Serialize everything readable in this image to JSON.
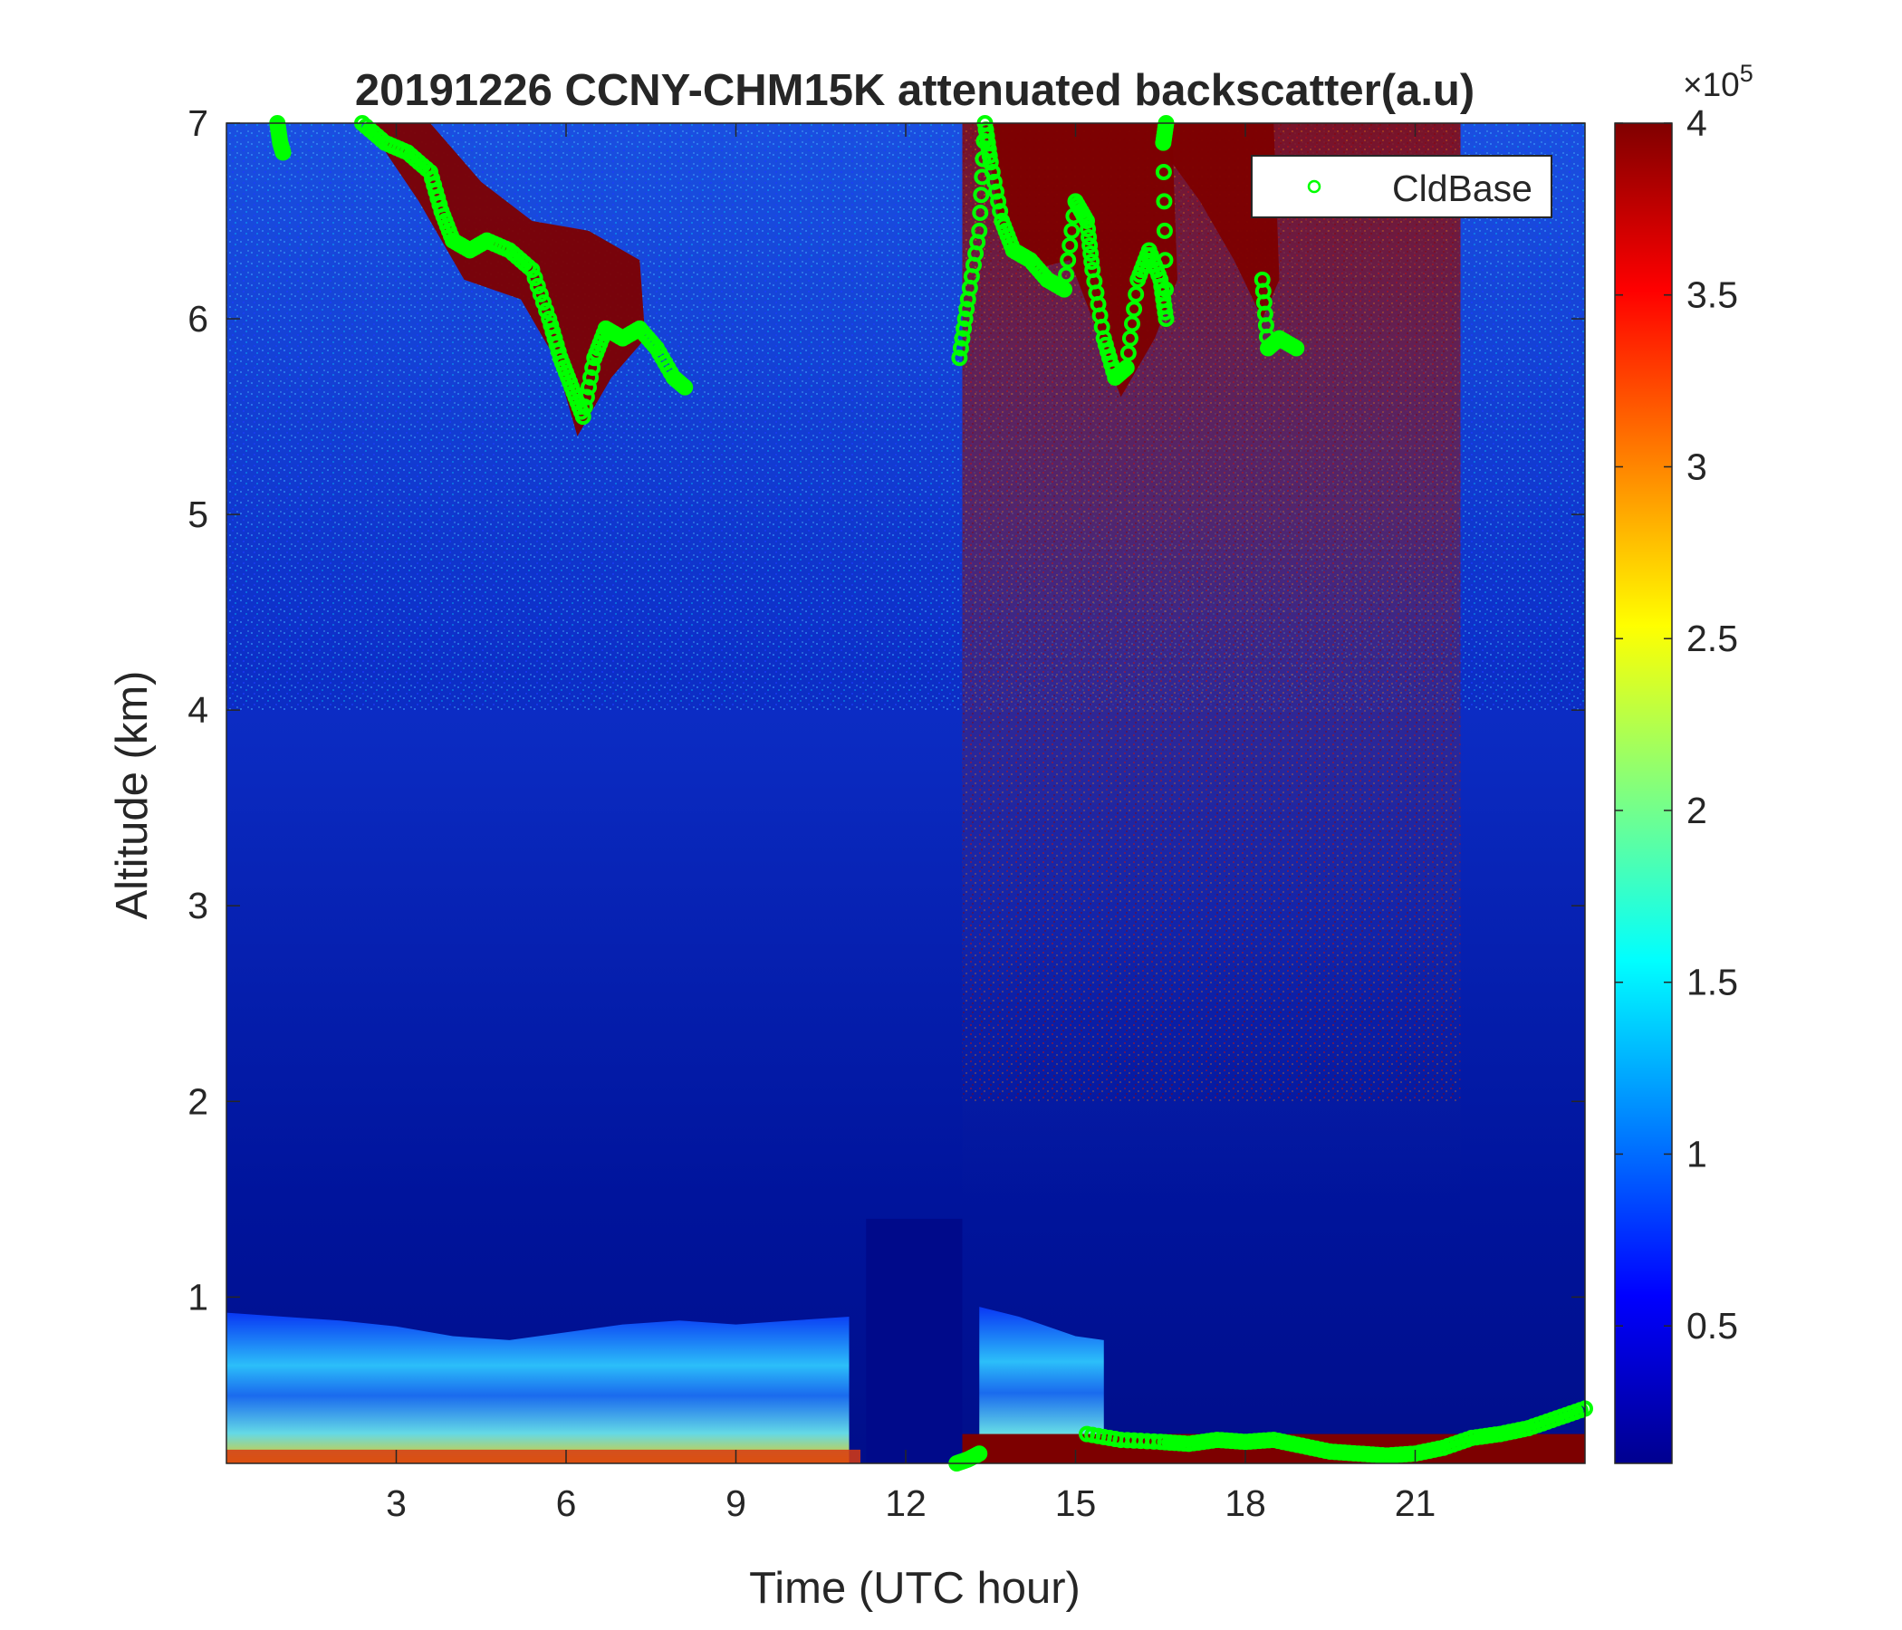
{
  "chart_data": {
    "type": "heatmap",
    "title": "20191226 CCNY-CHM15K attenuated backscatter(a.u)",
    "xlabel": "Time (UTC hour)",
    "ylabel": "Altitude (km)",
    "xlim": [
      0,
      24
    ],
    "ylim": [
      0.15,
      7
    ],
    "xticks": [
      3,
      6,
      9,
      12,
      15,
      18,
      21
    ],
    "yticks": [
      1,
      2,
      3,
      4,
      5,
      6,
      7
    ],
    "colorbar": {
      "colormap": "jet",
      "range": [
        0.1,
        4
      ],
      "ticks": [
        0.5,
        1,
        1.5,
        2,
        2.5,
        3,
        3.5,
        4
      ],
      "multiplier_base": "×10",
      "multiplier_exp": "5"
    },
    "legend": {
      "position": "top-right",
      "entries": [
        "CldBase"
      ]
    },
    "layers": [
      {
        "name": "aerosol",
        "points": [
          [
            0,
            0.92
          ],
          [
            1,
            0.9
          ],
          [
            2,
            0.88
          ],
          [
            3,
            0.85
          ],
          [
            4,
            0.8
          ],
          [
            5,
            0.78
          ],
          [
            6,
            0.82
          ],
          [
            7,
            0.86
          ],
          [
            8,
            0.88
          ],
          [
            9,
            0.86
          ],
          [
            10,
            0.88
          ],
          [
            11,
            0.9
          ]
        ]
      },
      {
        "name": "aerosol",
        "points": [
          [
            13.3,
            0.95
          ],
          [
            14,
            0.9
          ],
          [
            15,
            0.8
          ],
          [
            15.5,
            0.78
          ]
        ]
      }
    ],
    "series": [
      {
        "name": "CldBase",
        "color": "#00ff00",
        "marker": "circle",
        "segments": [
          [
            [
              0.9,
              7.0
            ],
            [
              0.95,
              6.9
            ],
            [
              1.0,
              6.85
            ]
          ],
          [
            [
              2.4,
              7.0
            ],
            [
              2.8,
              6.9
            ],
            [
              3.2,
              6.85
            ],
            [
              3.6,
              6.75
            ],
            [
              3.8,
              6.55
            ],
            [
              4.0,
              6.4
            ],
            [
              4.3,
              6.35
            ],
            [
              4.6,
              6.4
            ],
            [
              5.0,
              6.35
            ],
            [
              5.4,
              6.25
            ],
            [
              5.7,
              6.0
            ],
            [
              5.9,
              5.8
            ],
            [
              6.1,
              5.65
            ],
            [
              6.3,
              5.5
            ],
            [
              6.5,
              5.8
            ],
            [
              6.7,
              5.95
            ],
            [
              7.0,
              5.9
            ],
            [
              7.3,
              5.95
            ],
            [
              7.6,
              5.85
            ],
            [
              7.9,
              5.7
            ],
            [
              8.1,
              5.65
            ]
          ],
          [
            [
              12.95,
              5.8
            ],
            [
              13.1,
              6.1
            ],
            [
              13.3,
              6.45
            ],
            [
              13.4,
              7.0
            ],
            [
              13.5,
              6.8
            ],
            [
              13.7,
              6.5
            ],
            [
              13.9,
              6.35
            ],
            [
              14.2,
              6.3
            ],
            [
              14.5,
              6.2
            ],
            [
              14.8,
              6.15
            ],
            [
              15.0,
              6.6
            ],
            [
              15.2,
              6.5
            ],
            [
              15.3,
              6.25
            ],
            [
              15.5,
              5.9
            ],
            [
              15.7,
              5.7
            ],
            [
              15.9,
              5.75
            ],
            [
              16.1,
              6.2
            ],
            [
              16.3,
              6.35
            ],
            [
              16.5,
              6.2
            ],
            [
              16.6,
              6.0
            ],
            [
              16.55,
              6.9
            ],
            [
              16.6,
              7.0
            ]
          ],
          [
            [
              18.3,
              6.2
            ],
            [
              18.4,
              5.85
            ],
            [
              18.6,
              5.9
            ],
            [
              18.9,
              5.85
            ]
          ],
          [
            [
              12.9,
              0.15
            ],
            [
              13.1,
              0.17
            ],
            [
              13.3,
              0.2
            ]
          ],
          [
            [
              15.2,
              0.3
            ],
            [
              15.8,
              0.27
            ],
            [
              16.5,
              0.26
            ],
            [
              17.0,
              0.25
            ],
            [
              17.5,
              0.27
            ],
            [
              18.0,
              0.26
            ],
            [
              18.5,
              0.27
            ],
            [
              19.0,
              0.24
            ],
            [
              19.5,
              0.21
            ],
            [
              20.0,
              0.2
            ],
            [
              20.5,
              0.19
            ],
            [
              21.0,
              0.2
            ],
            [
              21.5,
              0.23
            ],
            [
              22.0,
              0.28
            ],
            [
              22.5,
              0.3
            ],
            [
              23.0,
              0.33
            ],
            [
              23.5,
              0.38
            ],
            [
              24.0,
              0.43
            ]
          ]
        ]
      }
    ]
  }
}
